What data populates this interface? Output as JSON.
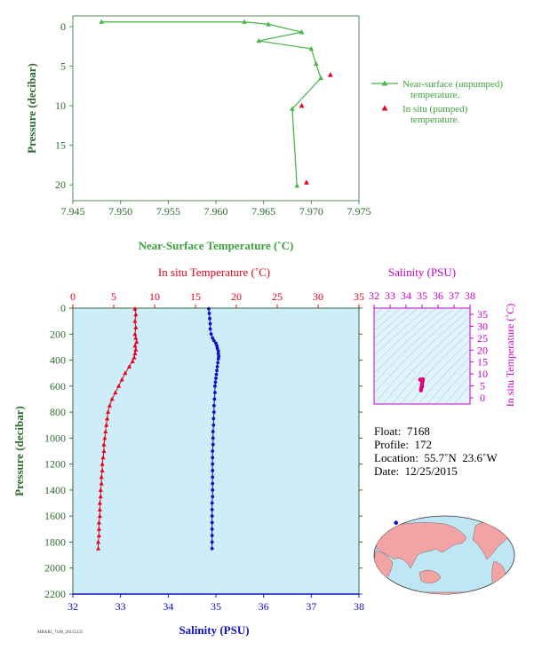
{
  "colors": {
    "near_surface": "#4cb84c",
    "insitu_pumped": "#e8001c",
    "temperature": "#e8001c",
    "salinity": "#1010c8",
    "salinity_inset": "#c800c8",
    "panel_bg": "#cdeef8",
    "axis_text": "#2e6b2e"
  },
  "chart_data": [
    {
      "type": "line",
      "xlabel": "Near-Surface Temperature (˚C)",
      "ylabel": "Pressure (decibar)",
      "xlim": [
        7.945,
        7.975
      ],
      "ylim": [
        0,
        22
      ],
      "y_inverted": true,
      "xticks": [
        "7.945",
        "7.950",
        "7.955",
        "7.960",
        "7.965",
        "7.970",
        "7.975"
      ],
      "yticks": [
        "0",
        "5",
        "10",
        "15",
        "20"
      ],
      "legend_position": "right",
      "series": [
        {
          "name": "Near-surface (unpumped) temperature.",
          "marker": "triangle",
          "points": [
            [
              7.948,
              -0.6
            ],
            [
              7.963,
              -0.6
            ],
            [
              7.9655,
              -0.3
            ],
            [
              7.969,
              0.7
            ],
            [
              7.9645,
              1.8
            ],
            [
              7.97,
              2.8
            ],
            [
              7.9705,
              4.7
            ],
            [
              7.971,
              6.5
            ],
            [
              7.968,
              10.4
            ],
            [
              7.9685,
              20.1
            ]
          ]
        },
        {
          "name": "In situ (pumped) temperature.",
          "marker": "triangle",
          "points": [
            [
              7.972,
              6.1
            ],
            [
              7.969,
              10.0
            ],
            [
              7.9695,
              19.7
            ]
          ]
        }
      ]
    },
    {
      "type": "line",
      "ylabel": "Pressure (decibar)",
      "ylim": [
        0,
        2200
      ],
      "y_inverted": true,
      "yticks": [
        "0",
        "200",
        "400",
        "600",
        "800",
        "1000",
        "1200",
        "1400",
        "1600",
        "1800",
        "2000",
        "2200"
      ],
      "top_axis": {
        "label": "In situ Temperature (˚C)",
        "range": [
          0,
          35
        ],
        "ticks": [
          "0",
          "5",
          "10",
          "15",
          "20",
          "25",
          "30",
          "35"
        ]
      },
      "bottom_axis": {
        "label": "Salinity (PSU)",
        "range": [
          32,
          38
        ],
        "ticks": [
          "32",
          "33",
          "34",
          "35",
          "36",
          "37",
          "38"
        ]
      },
      "series": [
        {
          "name": "In situ Temperature (˚C)",
          "marker": "triangle",
          "points": [
            [
              7.6,
              5
            ],
            [
              7.7,
              50
            ],
            [
              7.6,
              100
            ],
            [
              7.7,
              150
            ],
            [
              7.6,
              200
            ],
            [
              7.7,
              230
            ],
            [
              7.8,
              260
            ],
            [
              7.6,
              290
            ],
            [
              7.7,
              320
            ],
            [
              7.6,
              350
            ],
            [
              7.5,
              380
            ],
            [
              7.3,
              410
            ],
            [
              6.9,
              450
            ],
            [
              6.4,
              500
            ],
            [
              6.0,
              550
            ],
            [
              5.6,
              600
            ],
            [
              5.2,
              650
            ],
            [
              4.8,
              700
            ],
            [
              4.5,
              750
            ],
            [
              4.3,
              800
            ],
            [
              4.2,
              850
            ],
            [
              4.1,
              900
            ],
            [
              4.0,
              950
            ],
            [
              3.9,
              1000
            ],
            [
              3.8,
              1050
            ],
            [
              3.8,
              1100
            ],
            [
              3.7,
              1150
            ],
            [
              3.6,
              1200
            ],
            [
              3.6,
              1250
            ],
            [
              3.5,
              1300
            ],
            [
              3.5,
              1350
            ],
            [
              3.4,
              1400
            ],
            [
              3.4,
              1450
            ],
            [
              3.3,
              1500
            ],
            [
              3.3,
              1550
            ],
            [
              3.3,
              1600
            ],
            [
              3.2,
              1650
            ],
            [
              3.2,
              1700
            ],
            [
              3.2,
              1750
            ],
            [
              3.1,
              1800
            ],
            [
              3.1,
              1850
            ]
          ]
        },
        {
          "name": "Salinity (PSU)",
          "marker": "circle",
          "points": [
            [
              34.85,
              5
            ],
            [
              34.86,
              40
            ],
            [
              34.87,
              80
            ],
            [
              34.88,
              120
            ],
            [
              34.88,
              160
            ],
            [
              34.9,
              200
            ],
            [
              34.93,
              230
            ],
            [
              34.96,
              250
            ],
            [
              35.0,
              270
            ],
            [
              35.02,
              290
            ],
            [
              35.03,
              310
            ],
            [
              35.05,
              330
            ],
            [
              35.05,
              350
            ],
            [
              35.06,
              370
            ],
            [
              35.05,
              390
            ],
            [
              35.04,
              420
            ],
            [
              35.03,
              450
            ],
            [
              35.02,
              480
            ],
            [
              35.01,
              510
            ],
            [
              35.0,
              540
            ],
            [
              34.99,
              570
            ],
            [
              34.98,
              600
            ],
            [
              34.98,
              650
            ],
            [
              34.97,
              700
            ],
            [
              34.96,
              750
            ],
            [
              34.96,
              800
            ],
            [
              34.95,
              850
            ],
            [
              34.95,
              900
            ],
            [
              34.94,
              950
            ],
            [
              34.94,
              1000
            ],
            [
              34.94,
              1050
            ],
            [
              34.93,
              1100
            ],
            [
              34.93,
              1150
            ],
            [
              34.93,
              1200
            ],
            [
              34.93,
              1250
            ],
            [
              34.93,
              1300
            ],
            [
              34.93,
              1350
            ],
            [
              34.93,
              1400
            ],
            [
              34.93,
              1450
            ],
            [
              34.92,
              1500
            ],
            [
              34.92,
              1550
            ],
            [
              34.92,
              1600
            ],
            [
              34.92,
              1650
            ],
            [
              34.92,
              1700
            ],
            [
              34.92,
              1750
            ],
            [
              34.92,
              1800
            ],
            [
              34.92,
              1850
            ]
          ]
        }
      ]
    },
    {
      "type": "scatter",
      "top_axis": {
        "label": "Salinity (PSU)",
        "range": [
          32,
          38
        ],
        "ticks": [
          "32",
          "33",
          "34",
          "35",
          "36",
          "37",
          "38"
        ]
      },
      "right_axis": {
        "label": "In situ Temperature (˚C)",
        "range": [
          0,
          35
        ],
        "ticks": [
          "0",
          "5",
          "10",
          "15",
          "20",
          "25",
          "30",
          "35"
        ]
      },
      "density_contours": true,
      "points": [
        [
          34.93,
          3.1
        ],
        [
          34.94,
          3.5
        ],
        [
          34.95,
          4.0
        ],
        [
          34.97,
          4.5
        ],
        [
          34.99,
          5.2
        ],
        [
          35.01,
          6.0
        ],
        [
          35.03,
          6.8
        ],
        [
          35.05,
          7.5
        ],
        [
          34.95,
          7.6
        ],
        [
          34.9,
          7.7
        ],
        [
          35.06,
          7.8
        ],
        [
          34.88,
          7.6
        ],
        [
          34.97,
          7.3
        ],
        [
          35.0,
          4.8
        ]
      ]
    }
  ],
  "float_info": {
    "float": "Float:  7168",
    "profile": "Profile:  172",
    "location": "Location:  55.7˚N  23.6˚W",
    "date": "Date:  12/25/2015"
  },
  "map": {
    "marker_lat": 55.7,
    "marker_lon": -23.6
  },
  "footer_code": "MBARI_7168_20151225"
}
